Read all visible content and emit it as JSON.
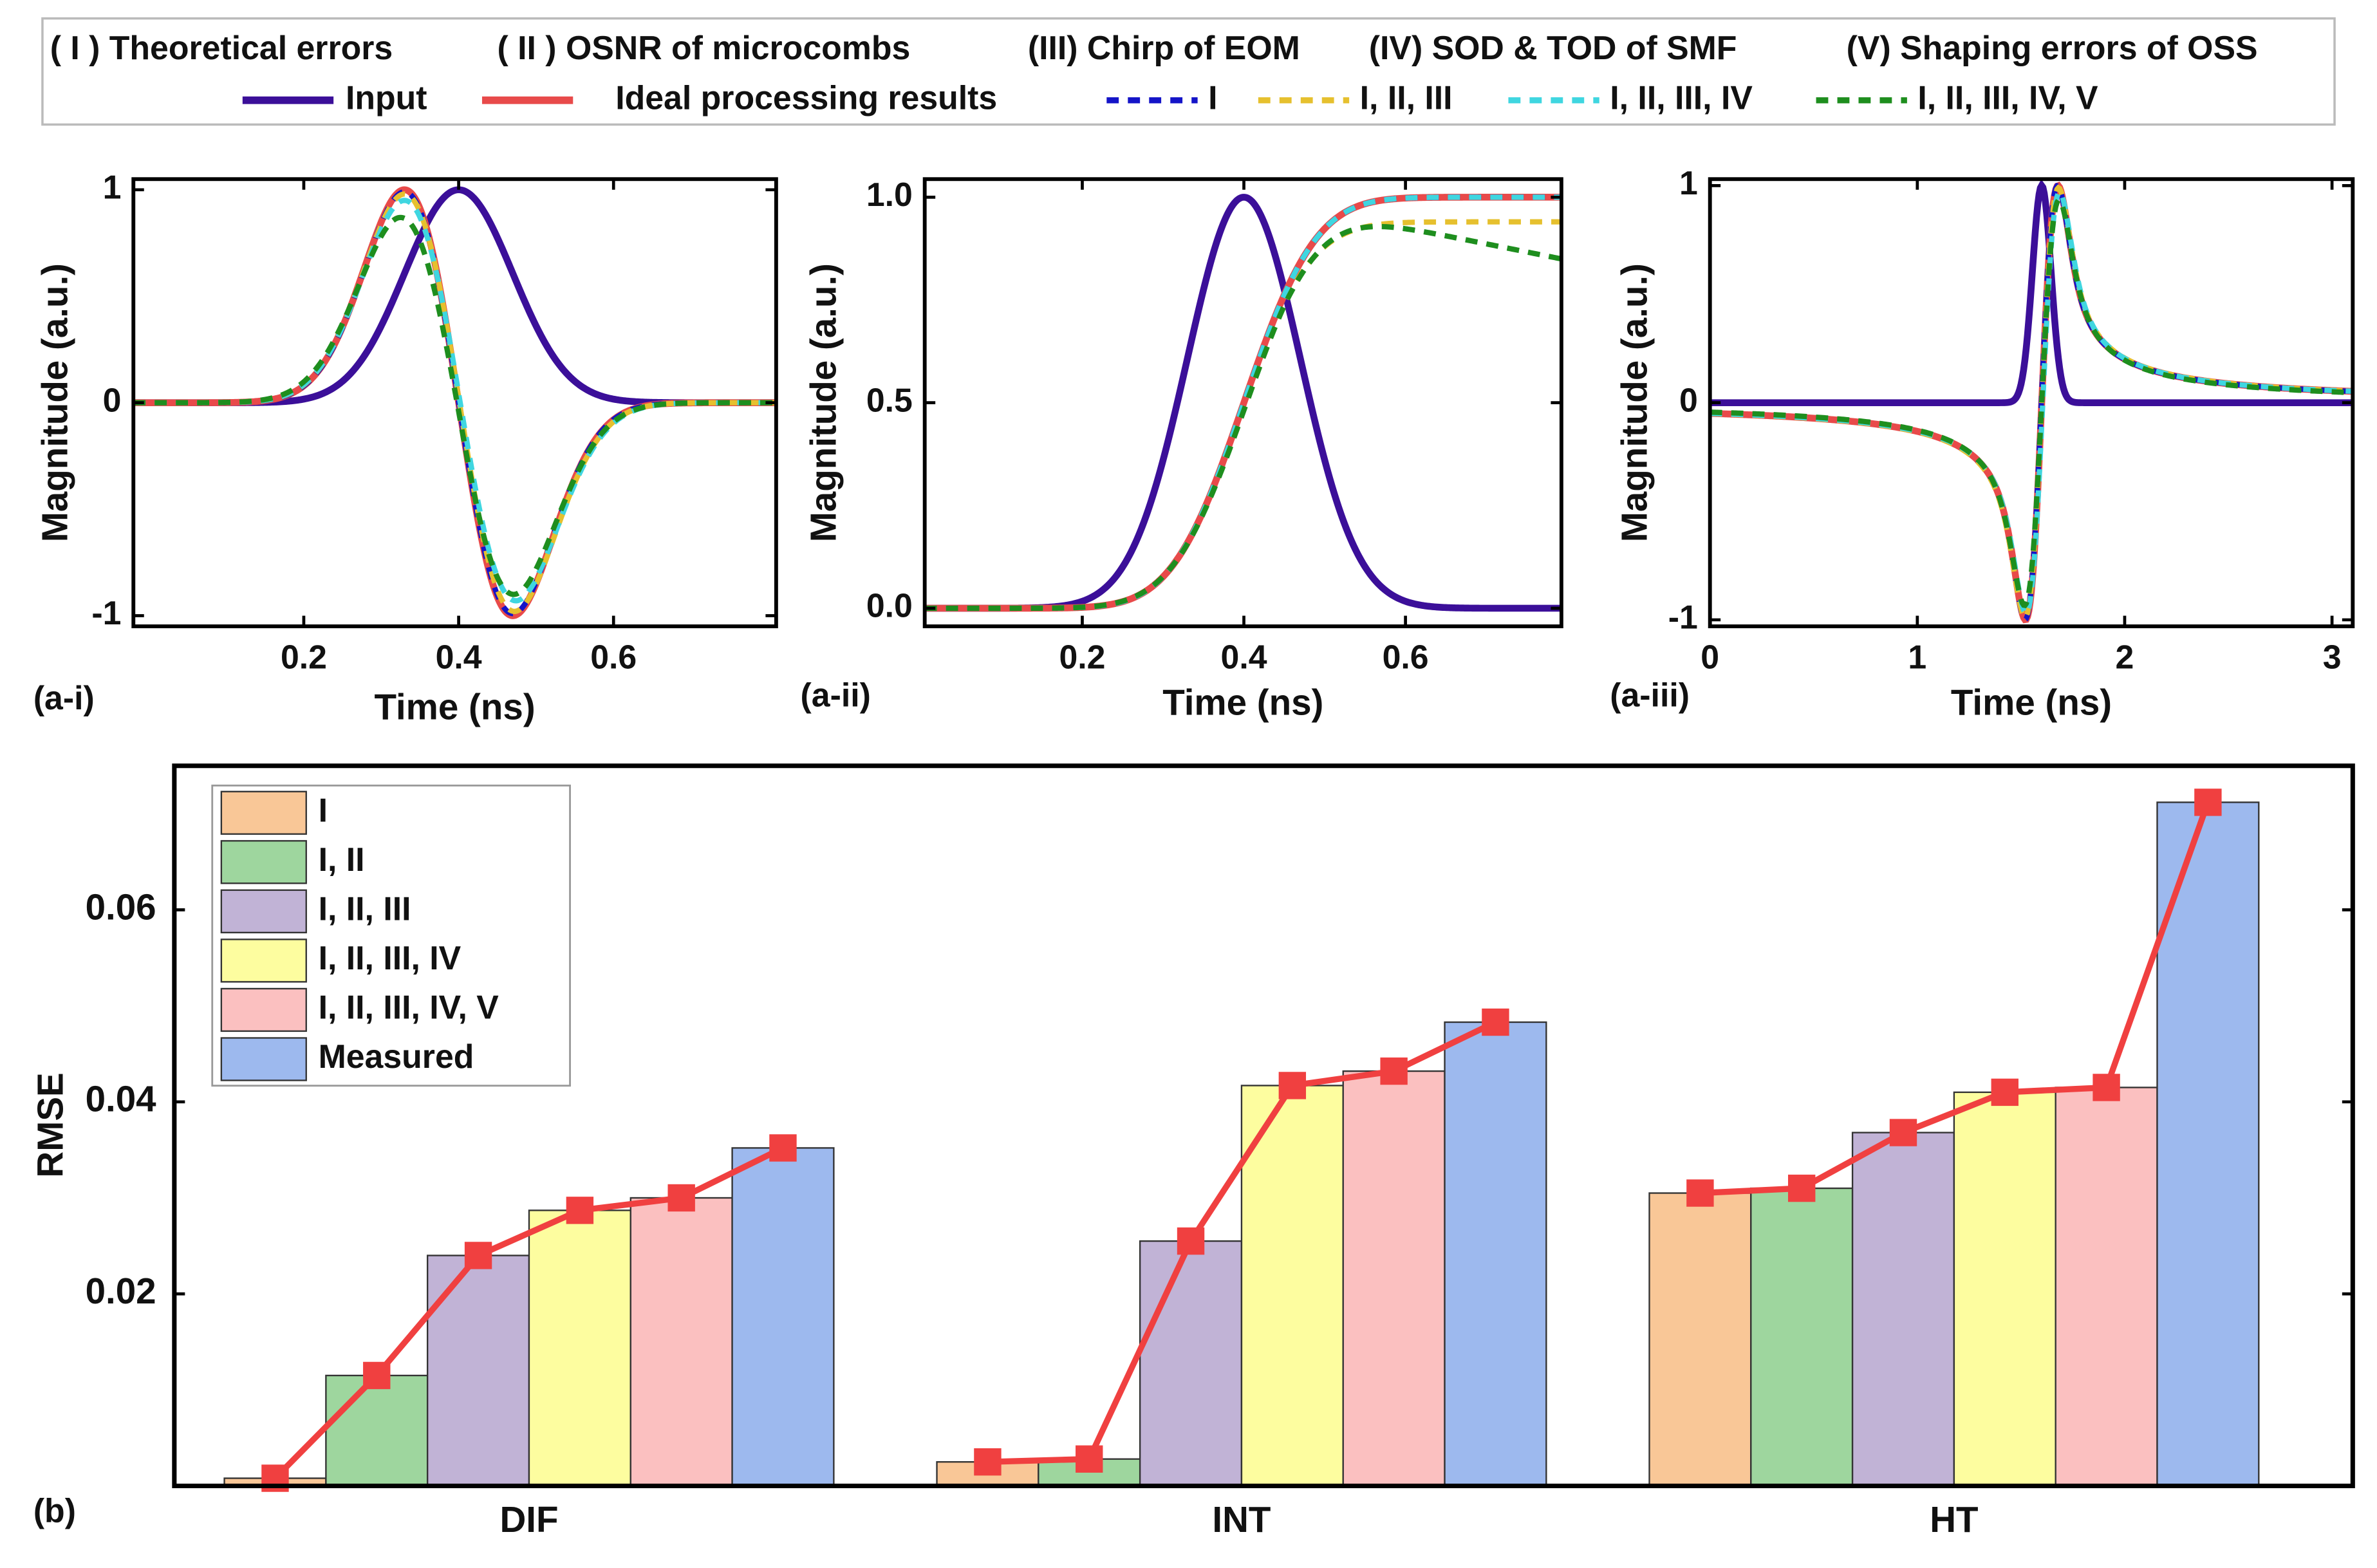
{
  "legend": {
    "error_sources": [
      "( I ) Theoretical errors",
      "( II ) OSNR of microcombs",
      "(III) Chirp of EOM",
      "(IV) SOD & TOD of SMF",
      "(V) Shaping errors of OSS"
    ],
    "series": [
      {
        "label": "Input",
        "color": "#3B0F99",
        "style": "solid"
      },
      {
        "label": "Ideal processing results",
        "color": "#E84A4A",
        "style": "solid"
      },
      {
        "label": "I",
        "color": "#1414C8",
        "style": "dashed"
      },
      {
        "label": "I, II, III",
        "color": "#E6C02E",
        "style": "dashed"
      },
      {
        "label": "I, II, III, IV",
        "color": "#3FD6E0",
        "style": "dashed"
      },
      {
        "label": "I, II, III, IV, V",
        "color": "#1E8E1E",
        "style": "dashed"
      }
    ]
  },
  "chart_data": [
    {
      "panel": "(a-i)",
      "type": "line",
      "xlabel": "Time (ns)",
      "ylabel": "Magnitude (a.u.)",
      "xlim": [
        -0.02,
        0.81
      ],
      "ylim": [
        -1.05,
        1.05
      ],
      "xticks": [
        0.2,
        0.4,
        0.6
      ],
      "xtick_labels": [
        "0.2",
        "0.4",
        "0.6"
      ],
      "yticks": [
        1,
        0,
        -1
      ],
      "ytick_labels": [
        "1",
        "0",
        "-1"
      ],
      "description_points": {
        "input_peak": [
          0.4,
          1
        ],
        "ideal_max": [
          0.33,
          1
        ],
        "ideal_min": [
          0.47,
          -1
        ],
        "green_max": [
          0.32,
          0.87
        ],
        "green_min": [
          0.47,
          -0.9
        ],
        "cyan_min": [
          0.47,
          -0.93
        ]
      }
    },
    {
      "panel": "(a-ii)",
      "type": "line",
      "xlabel": "Time (ns)",
      "ylabel": "Magnitude (a.u.)",
      "xlim": [
        0.005,
        0.793
      ],
      "ylim": [
        -0.044,
        1.044
      ],
      "xticks": [
        0.2,
        0.4,
        0.6
      ],
      "xtick_labels": [
        "0.2",
        "0.4",
        "0.6"
      ],
      "yticks": [
        1.0,
        0.5,
        0.0
      ],
      "ytick_labels": [
        "1.0",
        "0.5",
        "0.0"
      ],
      "description_points": {
        "input_peak": [
          0.4,
          1
        ],
        "ideal_final": [
          0.8,
          1.0
        ],
        "yellow_final": [
          0.8,
          0.94
        ],
        "green_max": [
          0.57,
          0.94
        ],
        "green_final": [
          0.8,
          0.86
        ]
      }
    },
    {
      "panel": "(a-iii)",
      "type": "line",
      "xlabel": "Time (ns)",
      "ylabel": "Magnitude (a.u.)",
      "xlim": [
        0,
        3.1
      ],
      "ylim": [
        -1.03,
        1.03
      ],
      "xticks": [
        0,
        1,
        2,
        3
      ],
      "xtick_labels": [
        "0",
        "1",
        "2",
        "3"
      ],
      "yticks": [
        1,
        0,
        -1
      ],
      "ytick_labels": [
        "1",
        "0",
        "-1"
      ],
      "description_points": {
        "input_peak": [
          1.6,
          1
        ],
        "ideal_min": [
          1.52,
          -1
        ],
        "ideal_max": [
          1.68,
          1
        ],
        "ideal_start": [
          0,
          -0.06
        ],
        "ideal_end": [
          3.1,
          0.05
        ]
      }
    },
    {
      "panel": "(b)",
      "type": "bar",
      "xlabel": "",
      "ylabel": "RMSE",
      "ylim": [
        0,
        0.075
      ],
      "yticks": [
        0.02,
        0.04,
        0.06
      ],
      "ytick_labels": [
        "0.02",
        "0.04",
        "0.06"
      ],
      "categories": [
        "DIF",
        "INT",
        "HT"
      ],
      "series": [
        {
          "name": "I",
          "color": "#F9C797",
          "values": [
            0.0008,
            0.0025,
            0.0305
          ]
        },
        {
          "name": "I, II",
          "color": "#9ED69E",
          "values": [
            0.0115,
            0.0028,
            0.031
          ]
        },
        {
          "name": "I, II, III",
          "color": "#C1B3D6",
          "values": [
            0.024,
            0.0255,
            0.0368
          ]
        },
        {
          "name": "I, II, III, IV",
          "color": "#FDFD9F",
          "values": [
            0.0287,
            0.0417,
            0.041
          ]
        },
        {
          "name": "I, II, III, IV, V",
          "color": "#FBC0C0",
          "values": [
            0.03,
            0.0432,
            0.0415
          ]
        },
        {
          "name": "Measured",
          "color": "#9DB9EE",
          "values": [
            0.0352,
            0.0483,
            0.0712
          ]
        }
      ],
      "overlay_line": {
        "color": "#F04040",
        "marker": "square"
      },
      "legend_placement": "top-left"
    }
  ]
}
